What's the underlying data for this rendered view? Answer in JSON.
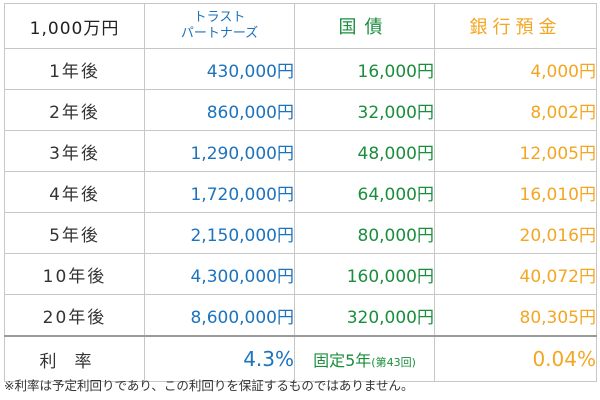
{
  "header": {
    "base": "1,000万円",
    "trust_line1": "トラスト",
    "trust_line2": "パートナーズ",
    "kokusai": "国債",
    "bank": "銀行預金"
  },
  "rows": [
    {
      "year": "1年後",
      "trust": "430,000円",
      "kokusai": "16,000円",
      "bank": "4,000円"
    },
    {
      "year": "2年後",
      "trust": "860,000円",
      "kokusai": "32,000円",
      "bank": "8,002円"
    },
    {
      "year": "3年後",
      "trust": "1,290,000円",
      "kokusai": "48,000円",
      "bank": "12,005円"
    },
    {
      "year": "4年後",
      "trust": "1,720,000円",
      "kokusai": "64,000円",
      "bank": "16,010円"
    },
    {
      "year": "5年後",
      "trust": "2,150,000円",
      "kokusai": "80,000円",
      "bank": "20,016円"
    },
    {
      "year": "10年後",
      "trust": "4,300,000円",
      "kokusai": "160,000円",
      "bank": "40,072円"
    },
    {
      "year": "20年後",
      "trust": "8,600,000円",
      "kokusai": "320,000円",
      "bank": "80,305円"
    }
  ],
  "rate": {
    "label": "利率",
    "trust": "4.3%",
    "kokusai_main": "固定5年",
    "kokusai_sub": "(第43回)",
    "bank": "0.04%"
  },
  "note": "※利率は予定利回りであり、この利回りを保証するものではありません。",
  "colors": {
    "trust": "#1d73bd",
    "kokusai": "#1a8e3c",
    "bank": "#f4a623",
    "border": "#c7c7c7"
  }
}
